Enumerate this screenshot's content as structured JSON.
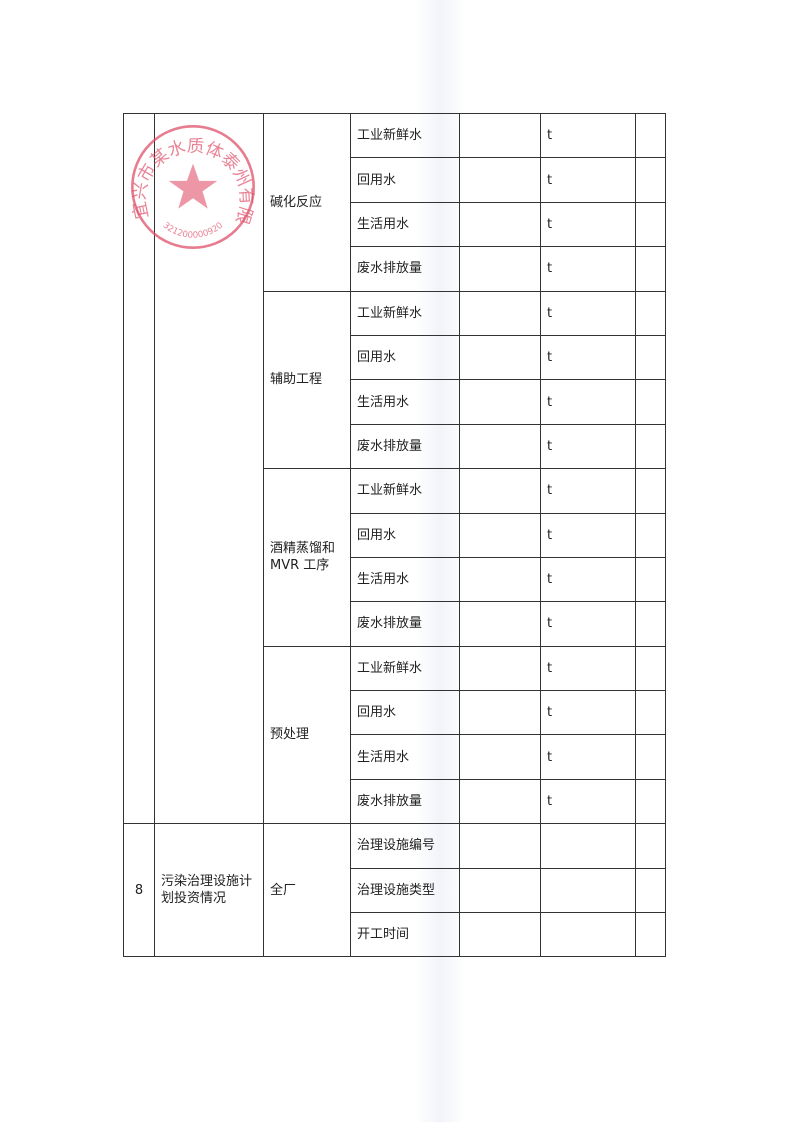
{
  "groups": [
    {
      "process": "碱化反应",
      "items": [
        {
          "name": "工业新鲜水",
          "unit": "t"
        },
        {
          "name": "回用水",
          "unit": "t"
        },
        {
          "name": "生活用水",
          "unit": "t"
        },
        {
          "name": "废水排放量",
          "unit": "t"
        }
      ]
    },
    {
      "process": "辅助工程",
      "items": [
        {
          "name": "工业新鲜水",
          "unit": "t"
        },
        {
          "name": "回用水",
          "unit": "t"
        },
        {
          "name": "生活用水",
          "unit": "t"
        },
        {
          "name": "废水排放量",
          "unit": "t"
        }
      ]
    },
    {
      "process": "酒精蒸馏和MVR 工序",
      "items": [
        {
          "name": "工业新鲜水",
          "unit": "t"
        },
        {
          "name": "回用水",
          "unit": "t"
        },
        {
          "name": "生活用水",
          "unit": "t"
        },
        {
          "name": "废水排放量",
          "unit": "t"
        }
      ]
    },
    {
      "process": "预处理",
      "items": [
        {
          "name": "工业新鲜水",
          "unit": "t"
        },
        {
          "name": "回用水",
          "unit": "t"
        },
        {
          "name": "生活用水",
          "unit": "t"
        },
        {
          "name": "废水排放量",
          "unit": "t"
        }
      ]
    }
  ],
  "section8": {
    "number": "8",
    "title": "污染治理设施计划投资情况",
    "scope": "全厂",
    "items": [
      {
        "name": "治理设施编号",
        "unit": ""
      },
      {
        "name": "治理设施类型",
        "unit": ""
      },
      {
        "name": "开工时间",
        "unit": ""
      }
    ]
  },
  "stamp": {
    "text": "宜兴市某水质体泰州有限公司",
    "code": "3212000009201",
    "color": "#e0506a"
  }
}
